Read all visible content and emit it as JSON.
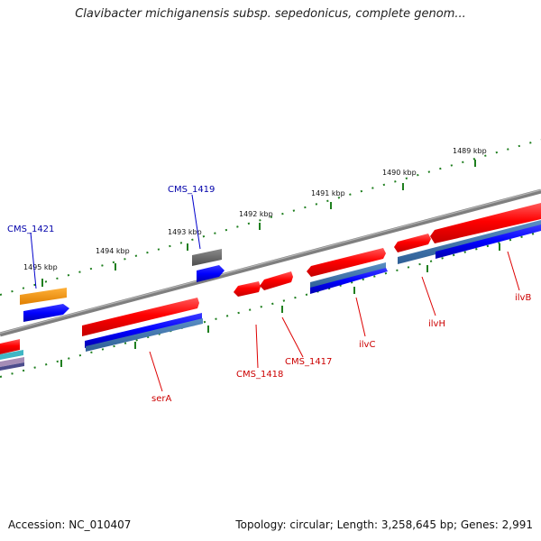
{
  "title": "Clavibacter michiganensis subsp. sepedonicus, complete genom...",
  "accession": "Accession: NC_010407",
  "summary": "Topology: circular; Length: 3,258,645 bp; Genes: 2,991",
  "colors": {
    "backbone": "#7f7f7f",
    "scale": "#1f7f1f",
    "forward_gene": "#ff0000",
    "reverse_gene": "#0000ff",
    "gene_label": "#cc0000",
    "locus_label": "#0000aa",
    "label_line_red": "#dd0000",
    "label_line_blue": "#0000cc"
  },
  "scale_labels": [
    "1495 kbp",
    "1494 kbp",
    "1493 kbp",
    "1492 kbp",
    "1491 kbp",
    "1490 kbp",
    "1489 kbp"
  ],
  "gene_labels": [
    "CMS_1421",
    "CMS_1419",
    "serA",
    "CMS_1418",
    "CMS_1417",
    "ilvC",
    "ilvH",
    "ilvB"
  ]
}
